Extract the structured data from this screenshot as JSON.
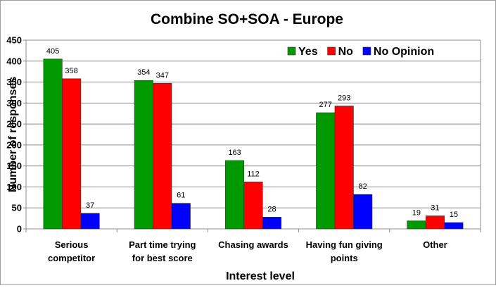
{
  "chart_data": {
    "type": "bar",
    "title": "Combine SO+SOA - Europe",
    "xlabel": "Interest level",
    "ylabel": "Number of responses",
    "ylim": [
      0,
      450
    ],
    "yticks": [
      0,
      50,
      100,
      150,
      200,
      250,
      300,
      350,
      400,
      450
    ],
    "grid": true,
    "legend_position": "top-right",
    "categories": [
      [
        "Serious",
        "competitor"
      ],
      [
        "Part time trying",
        "for best score"
      ],
      [
        "Chasing awards"
      ],
      [
        "Having fun giving",
        "points"
      ],
      [
        "Other"
      ]
    ],
    "series": [
      {
        "name": "Yes",
        "color": "#009900",
        "values": [
          405,
          354,
          163,
          277,
          19
        ]
      },
      {
        "name": "No",
        "color": "#ff0000",
        "values": [
          358,
          347,
          112,
          293,
          31
        ]
      },
      {
        "name": "No Opinion",
        "color": "#0000ff",
        "values": [
          37,
          61,
          28,
          82,
          15
        ]
      }
    ]
  }
}
